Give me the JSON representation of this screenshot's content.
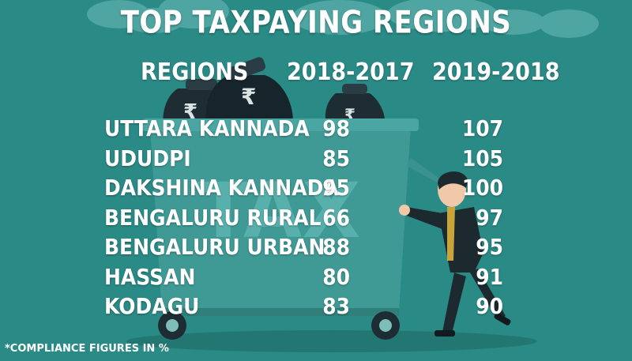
{
  "colors": {
    "background": "#2a8a86",
    "text": "#ffffff",
    "cloud": "#4fa5a1",
    "bin": "#3f9a96",
    "bag": "#1d2d33",
    "person_suit": "#1c2a2f",
    "person_tie": "#c9a43a"
  },
  "footnote": "*COMPLIANCE FIGURES IN %",
  "decor": {
    "bin_label": "TAX",
    "bag_symbol": "₹"
  },
  "chart_data": {
    "type": "table",
    "title": "TOP TAXPAYING REGIONS",
    "columns": [
      "REGIONS",
      "2018-2017",
      "2019-2018"
    ],
    "rows": [
      {
        "region": "UTTARA KANNADA",
        "y2018_2017": "98",
        "y2019_2018": "107"
      },
      {
        "region": "UDUDPI",
        "y2018_2017": "85",
        "y2019_2018": "105"
      },
      {
        "region": "DAKSHINA KANNADA",
        "y2018_2017": "95",
        "y2019_2018": "100"
      },
      {
        "region": "BENGALURU RURAL",
        "y2018_2017": "66",
        "y2019_2018": "97"
      },
      {
        "region": "BENGALURU URBAN",
        "y2018_2017": "88",
        "y2019_2018": "95"
      },
      {
        "region": "HASSAN",
        "y2018_2017": "80",
        "y2019_2018": "91"
      },
      {
        "region": "KODAGU",
        "y2018_2017": "83",
        "y2019_2018": "90"
      }
    ]
  }
}
